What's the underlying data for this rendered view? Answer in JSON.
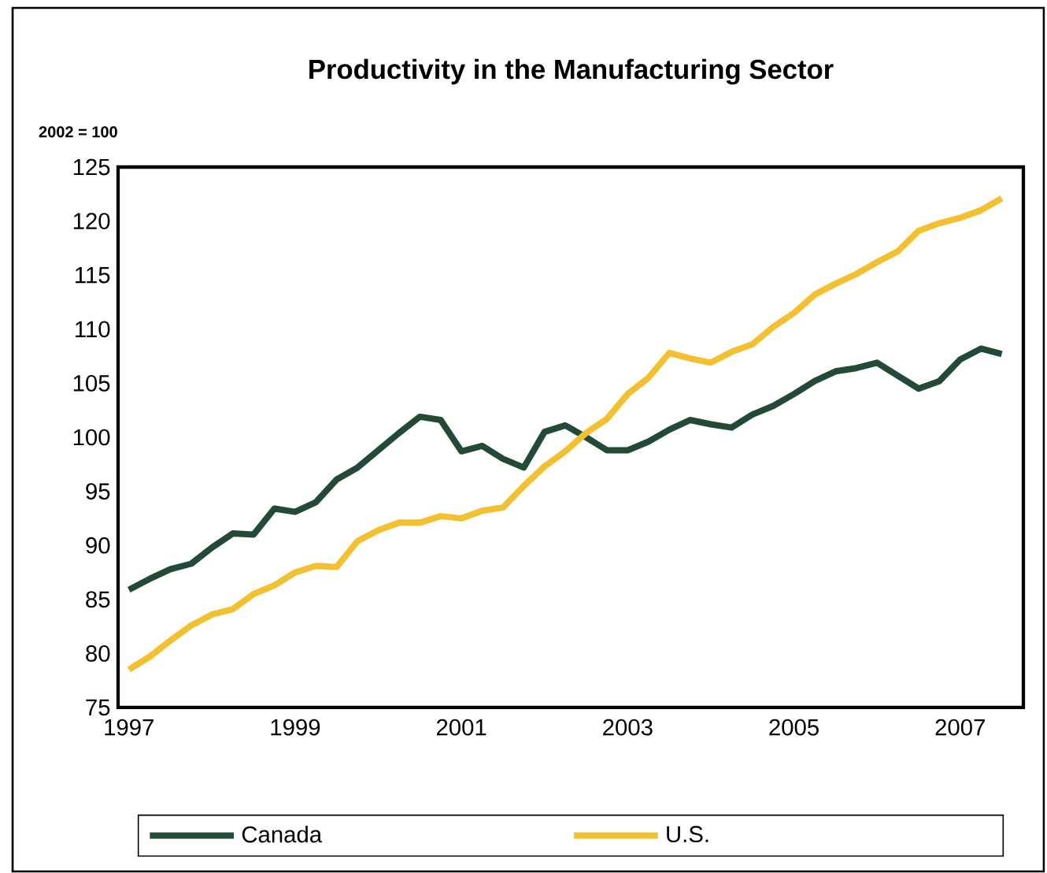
{
  "chart_data": {
    "type": "line",
    "title": "Productivity in the Manufacturing Sector",
    "ylabel": "2002 = 100",
    "x": [
      1997,
      1997.25,
      1997.5,
      1997.75,
      1998,
      1998.25,
      1998.5,
      1998.75,
      1999,
      1999.25,
      1999.5,
      1999.75,
      2000,
      2000.25,
      2000.5,
      2000.75,
      2001,
      2001.25,
      2001.5,
      2001.75,
      2002,
      2002.25,
      2002.5,
      2002.75,
      2003,
      2003.25,
      2003.5,
      2003.75,
      2004,
      2004.25,
      2004.5,
      2004.75,
      2005,
      2005.25,
      2005.5,
      2005.75,
      2006,
      2006.25,
      2006.5,
      2006.75,
      2007,
      2007.25,
      2007.5
    ],
    "series": [
      {
        "name": "Canada",
        "color": "#234a36",
        "values": [
          85.9,
          86.9,
          87.8,
          88.3,
          89.8,
          91.1,
          91.0,
          93.4,
          93.1,
          94.0,
          96.1,
          97.2,
          98.8,
          100.4,
          101.9,
          101.6,
          98.7,
          99.2,
          98.0,
          97.2,
          100.5,
          101.1,
          100.0,
          98.8,
          98.8,
          99.6,
          100.7,
          101.6,
          101.2,
          100.9,
          102.1,
          102.9,
          104.0,
          105.2,
          106.1,
          106.4,
          106.9,
          105.7,
          104.5,
          105.2,
          107.2,
          108.2,
          107.7
        ]
      },
      {
        "name": "U.S.",
        "color": "#f2c030",
        "values": [
          78.5,
          79.7,
          81.2,
          82.6,
          83.6,
          84.1,
          85.5,
          86.3,
          87.5,
          88.1,
          88.0,
          90.4,
          91.4,
          92.1,
          92.1,
          92.7,
          92.5,
          93.2,
          93.5,
          95.5,
          97.3,
          98.7,
          100.4,
          101.7,
          104.0,
          105.5,
          107.8,
          107.3,
          106.9,
          107.9,
          108.6,
          110.2,
          111.5,
          113.2,
          114.2,
          115.1,
          116.2,
          117.2,
          119.1,
          119.8,
          120.3,
          121.0,
          122.1
        ]
      }
    ],
    "xlim": [
      1996.87,
      2007.76
    ],
    "xticks": [
      1997,
      1999,
      2001,
      2003,
      2005,
      2007
    ],
    "ylim": [
      75,
      125
    ],
    "yticks": [
      75,
      80,
      85,
      90,
      95,
      100,
      105,
      110,
      115,
      120,
      125
    ],
    "grid": false,
    "legend": "bottom"
  }
}
